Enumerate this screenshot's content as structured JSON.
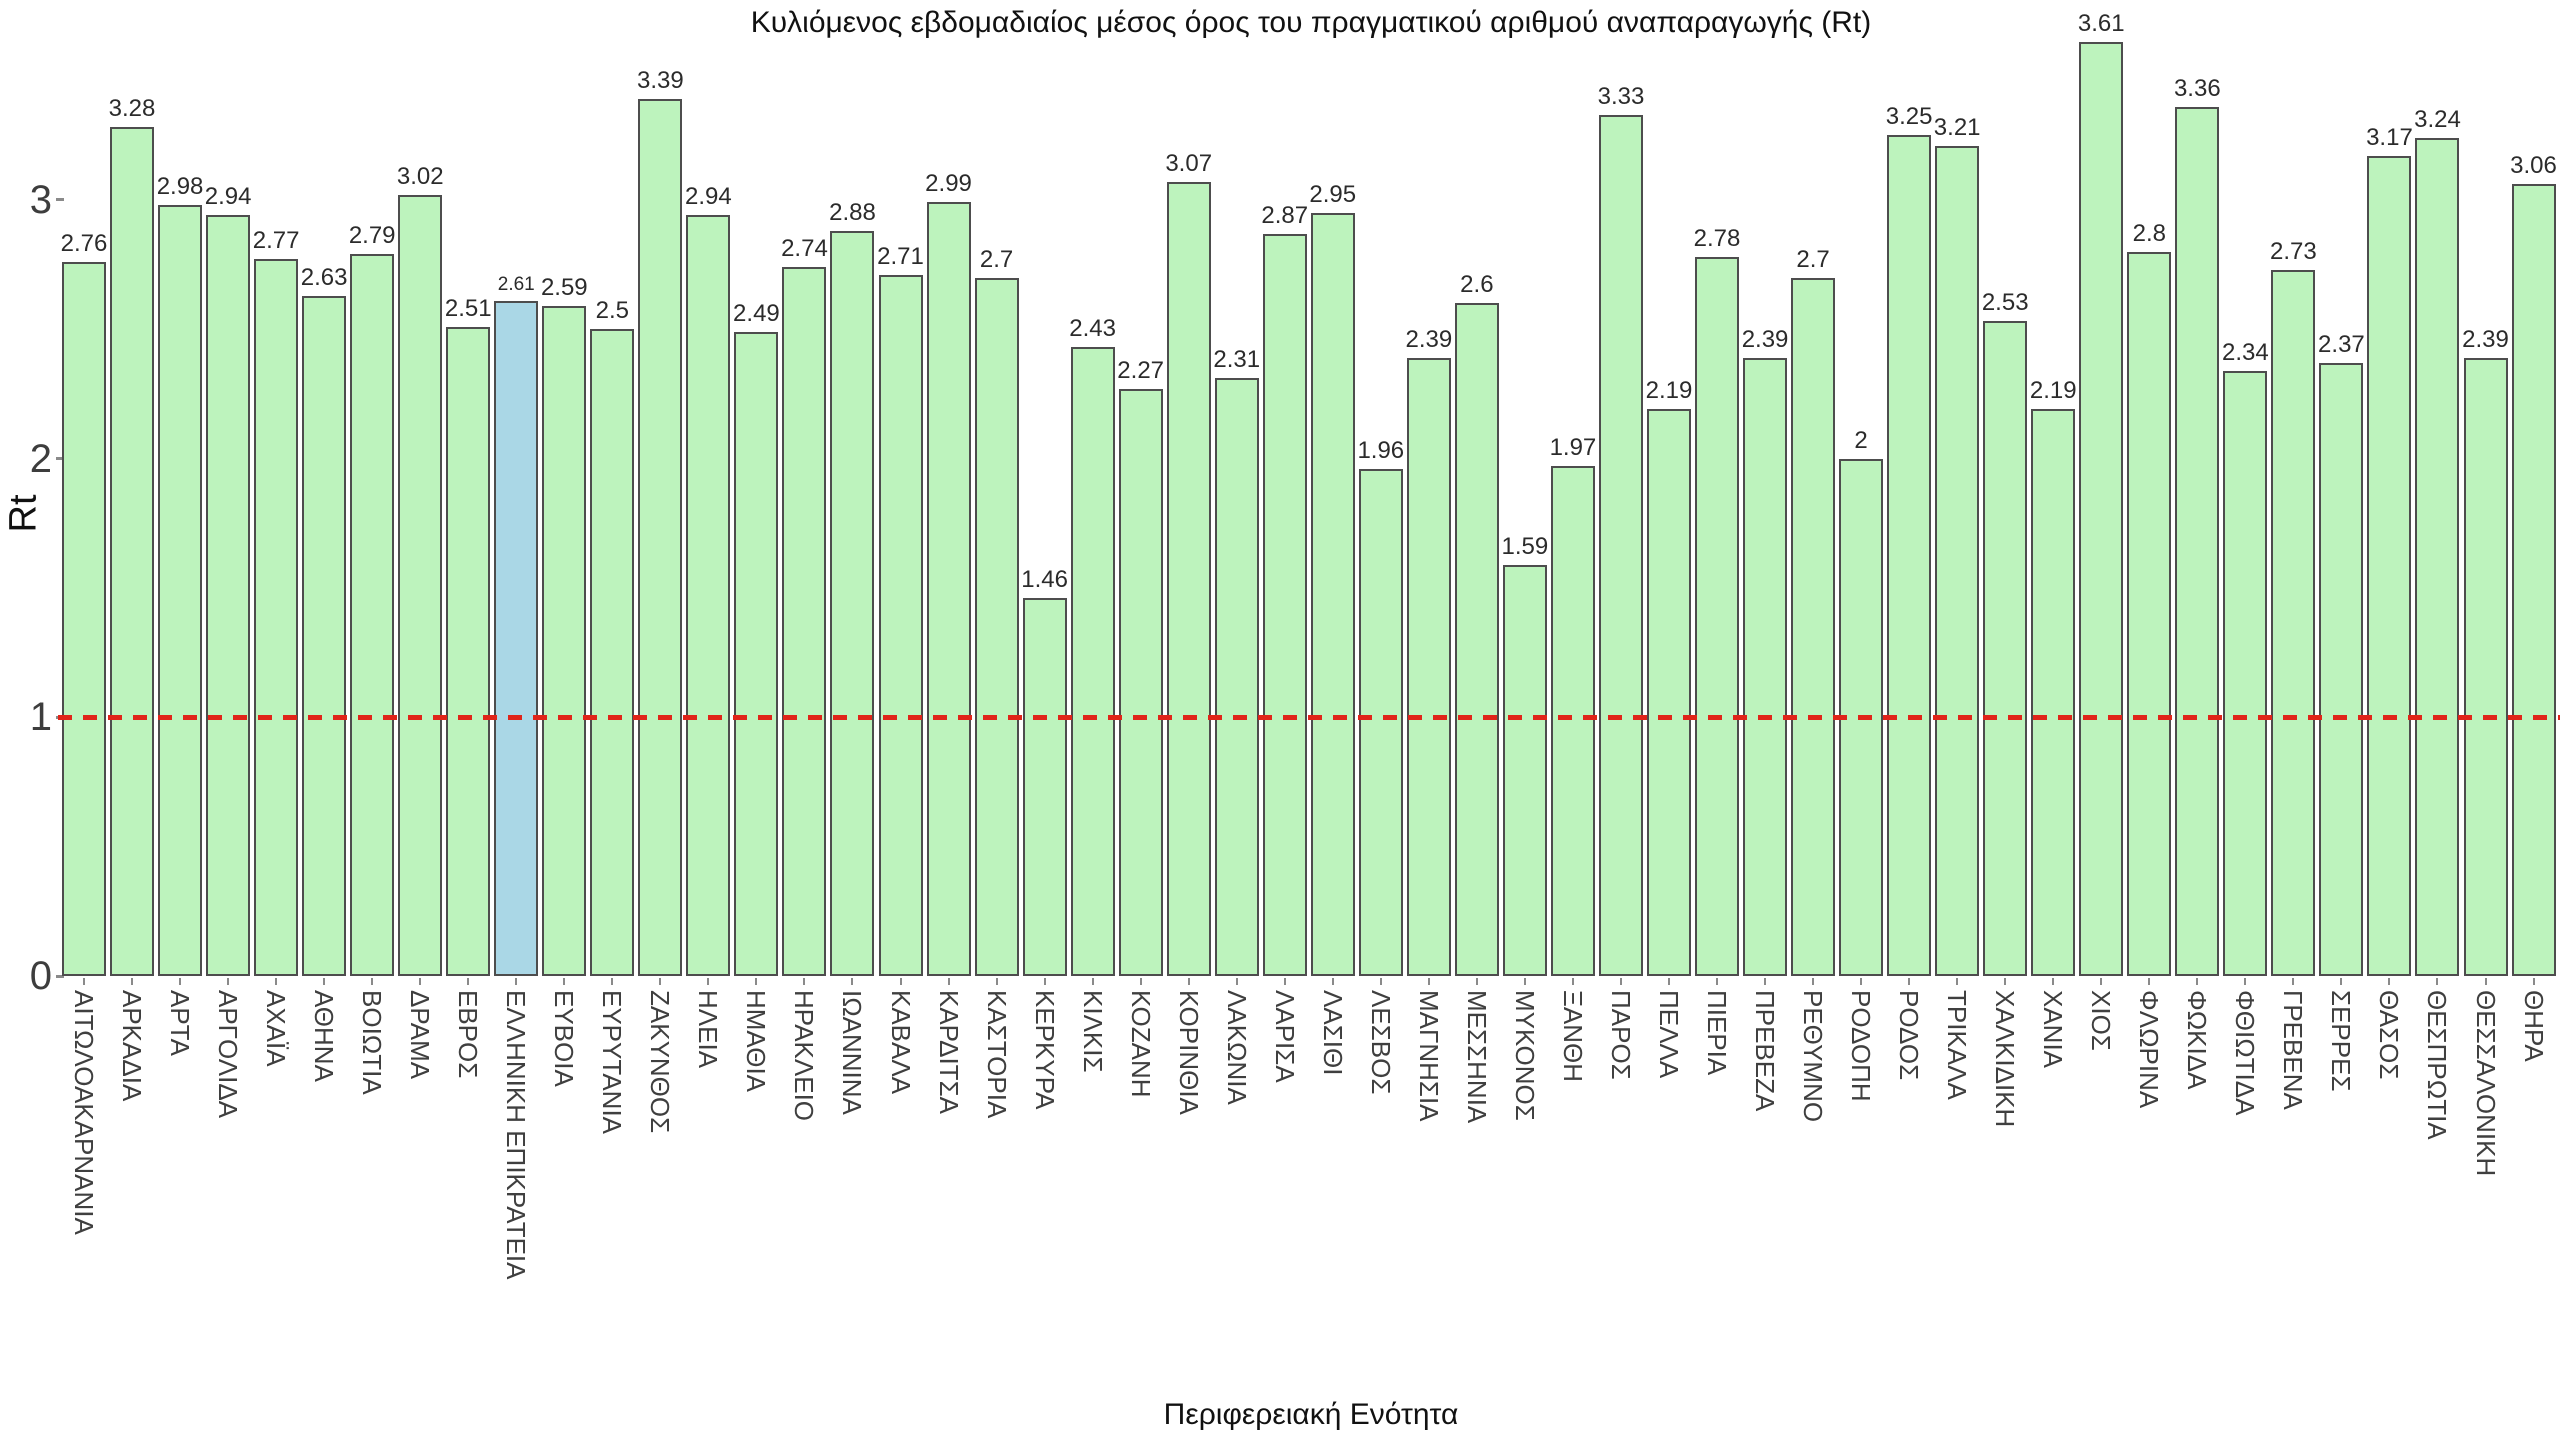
{
  "chart_data": {
    "type": "bar",
    "title": "Κυλιόμενος εβδομαδιαίος μέσος όρος του πραγματικού αριθμού αναπαραγωγής (Rt)",
    "xlabel": "Περιφερειακή Ενότητα",
    "ylabel": "Rt",
    "categories": [
      "ΑΙΤΩΛΟΑΚΑΡΝΑΝΙΑ",
      "ΑΡΚΑΔΙΑ",
      "ΑΡΤΑ",
      "ΑΡΓΟΛΙΔΑ",
      "ΑΧΑΪΑ",
      "ΑΘΗΝΑ",
      "ΒΟΙΩΤΙΑ",
      "ΔΡΑΜΑ",
      "ΕΒΡΟΣ",
      "ΕΛΛΗΝΙΚΗ ΕΠΙΚΡΑΤΕΙΑ",
      "ΕΥΒΟΙΑ",
      "ΕΥΡΥΤΑΝΙΑ",
      "ΖΑΚΥΝΘΟΣ",
      "ΗΛΕΙΑ",
      "ΗΜΑΘΙΑ",
      "ΗΡΑΚΛΕΙΟ",
      "ΙΩΑΝΝΙΝΑ",
      "ΚΑΒΑΛΑ",
      "ΚΑΡΔΙΤΣΑ",
      "ΚΑΣΤΟΡΙΑ",
      "ΚΕΡΚΥΡΑ",
      "ΚΙΛΚΙΣ",
      "ΚΟΖΑΝΗ",
      "ΚΟΡΙΝΘΙΑ",
      "ΛΑΚΩΝΙΑ",
      "ΛΑΡΙΣΑ",
      "ΛΑΣΙΘΙ",
      "ΛΕΣΒΟΣ",
      "ΜΑΓΝΗΣΙΑ",
      "ΜΕΣΣΗΝΙΑ",
      "ΜΥΚΟΝΟΣ",
      "ΞΑΝΘΗ",
      "ΠΑΡΟΣ",
      "ΠΕΛΛΑ",
      "ΠΙΕΡΙΑ",
      "ΠΡΕΒΕΖΑ",
      "ΡΕΘΥΜΝΟ",
      "ΡΟΔΟΠΗ",
      "ΡΟΔΟΣ",
      "ΤΡΙΚΑΛΑ",
      "ΧΑΛΚΙΔΙΚΗ",
      "ΧΑΝΙΑ",
      "ΧΙΟΣ",
      "ΦΛΩΡΙΝΑ",
      "ΦΩΚΙΔΑ",
      "ΦΘΙΩΤΙΔΑ",
      "ΓΡΕΒΕΝΑ",
      "ΣΕΡΡΕΣ",
      "ΘΑΣΟΣ",
      "ΘΕΣΠΡΩΤΙΑ",
      "ΘΕΣΣΑΛΟΝΙΚΗ",
      "ΘΗΡΑ"
    ],
    "values": [
      2.76,
      3.28,
      2.98,
      2.94,
      2.77,
      2.63,
      2.79,
      3.02,
      2.51,
      2.61,
      2.59,
      2.5,
      3.39,
      2.94,
      2.49,
      2.74,
      2.88,
      2.71,
      2.99,
      2.7,
      1.46,
      2.43,
      2.27,
      3.07,
      2.31,
      2.87,
      2.95,
      1.96,
      2.39,
      2.6,
      1.59,
      1.97,
      3.33,
      2.19,
      2.78,
      2.39,
      2.7,
      2,
      3.25,
      3.21,
      2.53,
      2.19,
      3.61,
      2.8,
      3.36,
      2.34,
      2.73,
      2.37,
      3.17,
      3.24,
      2.39,
      3.06
    ],
    "value_labels": [
      "2.76",
      "3.28",
      "2.98",
      "2.94",
      "2.77",
      "2.63",
      "2.79",
      "3.02",
      "2.51",
      "2.61",
      "2.59",
      "2.5",
      "3.39",
      "2.94",
      "2.49",
      "2.74",
      "2.88",
      "2.71",
      "2.99",
      "2.7",
      "1.46",
      "2.43",
      "2.27",
      "3.07",
      "2.31",
      "2.87",
      "2.95",
      "1.96",
      "2.39",
      "2.6",
      "1.59",
      "1.97",
      "3.33",
      "2.19",
      "2.78",
      "2.39",
      "2.7",
      "2",
      "3.25",
      "3.21",
      "2.53",
      "2.19",
      "3.61",
      "2.8",
      "3.36",
      "2.34",
      "2.73",
      "2.37",
      "3.17",
      "3.24",
      "2.39",
      "3.06"
    ],
    "highlight_index": 9,
    "highlight_category": "ΕΛΛΗΝΙΚΗ ΕΠΙΚΡΑΤΕΙΑ",
    "ytick_labels": [
      "0",
      "1",
      "2",
      "3"
    ],
    "yticks": [
      0,
      1,
      2,
      3
    ],
    "ylim": [
      0,
      3.77
    ],
    "grid": false,
    "legend": "none",
    "reference_line": {
      "y": 1,
      "style": "dashed",
      "color": "#e02419"
    },
    "colors": {
      "bar_fill": "#bdf3bd",
      "highlight_fill": "#aad7e6",
      "bar_border": "#4d4d4d",
      "reference_line": "#e02419",
      "value_label": "#2b2b2b",
      "tick_label": "#3f3f3f"
    }
  }
}
